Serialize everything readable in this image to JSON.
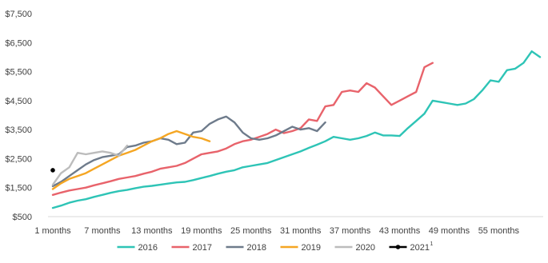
{
  "chart_data": {
    "type": "line",
    "title": "",
    "xlabel": "",
    "ylabel": "",
    "grid": false,
    "legend_placement": "bottom",
    "x_categories": [
      "1 months",
      "7 months",
      "13 months",
      "19 months",
      "25 months",
      "31 months",
      "37 months",
      "43 months",
      "49 months",
      "55 months"
    ],
    "x_range": [
      1,
      60
    ],
    "y_ticks": [
      "$500",
      "$1,500",
      "$2,500",
      "$3,500",
      "$4,500",
      "$5,500",
      "$6,500",
      "$7,500"
    ],
    "y_tick_values": [
      500,
      1500,
      2500,
      3500,
      4500,
      5500,
      6500,
      7500
    ],
    "ylim": [
      500,
      7500
    ],
    "series": [
      {
        "name": "2016",
        "color": "#2ec4b6",
        "points": [
          [
            1,
            800
          ],
          [
            2,
            880
          ],
          [
            3,
            980
          ],
          [
            4,
            1050
          ],
          [
            5,
            1100
          ],
          [
            6,
            1180
          ],
          [
            7,
            1250
          ],
          [
            8,
            1320
          ],
          [
            9,
            1380
          ],
          [
            10,
            1420
          ],
          [
            11,
            1480
          ],
          [
            12,
            1530
          ],
          [
            13,
            1560
          ],
          [
            14,
            1600
          ],
          [
            15,
            1640
          ],
          [
            16,
            1680
          ],
          [
            17,
            1700
          ],
          [
            18,
            1760
          ],
          [
            19,
            1830
          ],
          [
            20,
            1900
          ],
          [
            21,
            1980
          ],
          [
            22,
            2050
          ],
          [
            23,
            2100
          ],
          [
            24,
            2200
          ],
          [
            25,
            2250
          ],
          [
            26,
            2300
          ],
          [
            27,
            2350
          ],
          [
            28,
            2450
          ],
          [
            29,
            2550
          ],
          [
            30,
            2650
          ],
          [
            31,
            2750
          ],
          [
            32,
            2870
          ],
          [
            33,
            2980
          ],
          [
            34,
            3100
          ],
          [
            35,
            3250
          ],
          [
            36,
            3200
          ],
          [
            37,
            3150
          ],
          [
            38,
            3200
          ],
          [
            39,
            3280
          ],
          [
            40,
            3400
          ],
          [
            41,
            3300
          ],
          [
            42,
            3300
          ],
          [
            43,
            3280
          ],
          [
            44,
            3550
          ],
          [
            45,
            3800
          ],
          [
            46,
            4050
          ],
          [
            47,
            4500
          ],
          [
            48,
            4450
          ],
          [
            49,
            4400
          ],
          [
            50,
            4350
          ],
          [
            51,
            4400
          ],
          [
            52,
            4550
          ],
          [
            53,
            4850
          ],
          [
            54,
            5200
          ],
          [
            55,
            5150
          ],
          [
            56,
            5550
          ],
          [
            57,
            5600
          ],
          [
            58,
            5800
          ],
          [
            59,
            6200
          ],
          [
            60,
            6000
          ]
        ]
      },
      {
        "name": "2017",
        "color": "#e8636b",
        "points": [
          [
            1,
            1250
          ],
          [
            2,
            1330
          ],
          [
            3,
            1400
          ],
          [
            4,
            1450
          ],
          [
            5,
            1500
          ],
          [
            6,
            1580
          ],
          [
            7,
            1650
          ],
          [
            8,
            1720
          ],
          [
            9,
            1800
          ],
          [
            10,
            1850
          ],
          [
            11,
            1900
          ],
          [
            12,
            1980
          ],
          [
            13,
            2050
          ],
          [
            14,
            2150
          ],
          [
            15,
            2200
          ],
          [
            16,
            2250
          ],
          [
            17,
            2350
          ],
          [
            18,
            2500
          ],
          [
            19,
            2650
          ],
          [
            20,
            2700
          ],
          [
            21,
            2750
          ],
          [
            22,
            2850
          ],
          [
            23,
            3000
          ],
          [
            24,
            3100
          ],
          [
            25,
            3150
          ],
          [
            26,
            3250
          ],
          [
            27,
            3350
          ],
          [
            28,
            3500
          ],
          [
            29,
            3380
          ],
          [
            30,
            3450
          ],
          [
            31,
            3550
          ],
          [
            32,
            3850
          ],
          [
            33,
            3800
          ],
          [
            34,
            4300
          ],
          [
            35,
            4350
          ],
          [
            36,
            4800
          ],
          [
            37,
            4850
          ],
          [
            38,
            4800
          ],
          [
            39,
            5100
          ],
          [
            40,
            4950
          ],
          [
            41,
            4650
          ],
          [
            42,
            4350
          ],
          [
            43,
            4500
          ],
          [
            44,
            4650
          ],
          [
            45,
            4800
          ],
          [
            46,
            5650
          ],
          [
            47,
            5800
          ]
        ]
      },
      {
        "name": "2018",
        "color": "#6e7b8b",
        "points": [
          [
            1,
            1550
          ],
          [
            2,
            1700
          ],
          [
            3,
            1900
          ],
          [
            4,
            2100
          ],
          [
            5,
            2300
          ],
          [
            6,
            2450
          ],
          [
            7,
            2550
          ],
          [
            8,
            2600
          ],
          [
            9,
            2650
          ],
          [
            10,
            2900
          ],
          [
            11,
            2950
          ],
          [
            12,
            3050
          ],
          [
            13,
            3100
          ],
          [
            14,
            3200
          ],
          [
            15,
            3150
          ],
          [
            16,
            3000
          ],
          [
            17,
            3050
          ],
          [
            18,
            3400
          ],
          [
            19,
            3450
          ],
          [
            20,
            3700
          ],
          [
            21,
            3850
          ],
          [
            22,
            3950
          ],
          [
            23,
            3750
          ],
          [
            24,
            3400
          ],
          [
            25,
            3200
          ],
          [
            26,
            3150
          ],
          [
            27,
            3200
          ],
          [
            28,
            3300
          ],
          [
            29,
            3450
          ],
          [
            30,
            3600
          ],
          [
            31,
            3500
          ],
          [
            32,
            3550
          ],
          [
            33,
            3450
          ],
          [
            34,
            3750
          ]
        ]
      },
      {
        "name": "2019",
        "color": "#f5a623",
        "points": [
          [
            1,
            1450
          ],
          [
            2,
            1650
          ],
          [
            3,
            1800
          ],
          [
            4,
            1900
          ],
          [
            5,
            2000
          ],
          [
            6,
            2150
          ],
          [
            7,
            2300
          ],
          [
            8,
            2450
          ],
          [
            9,
            2600
          ],
          [
            10,
            2700
          ],
          [
            11,
            2800
          ],
          [
            12,
            2950
          ],
          [
            13,
            3100
          ],
          [
            14,
            3200
          ],
          [
            15,
            3350
          ],
          [
            16,
            3450
          ],
          [
            17,
            3350
          ],
          [
            18,
            3250
          ],
          [
            19,
            3200
          ],
          [
            20,
            3100
          ]
        ]
      },
      {
        "name": "2020",
        "color": "#bcbcbc",
        "points": [
          [
            1,
            1600
          ],
          [
            2,
            2000
          ],
          [
            3,
            2200
          ],
          [
            4,
            2700
          ],
          [
            5,
            2650
          ],
          [
            6,
            2700
          ],
          [
            7,
            2750
          ],
          [
            8,
            2700
          ],
          [
            9,
            2600
          ],
          [
            10,
            2950
          ]
        ]
      },
      {
        "name": "2021",
        "superscript": "1",
        "color": "#000000",
        "points": [
          [
            1,
            2100
          ]
        ]
      }
    ]
  }
}
